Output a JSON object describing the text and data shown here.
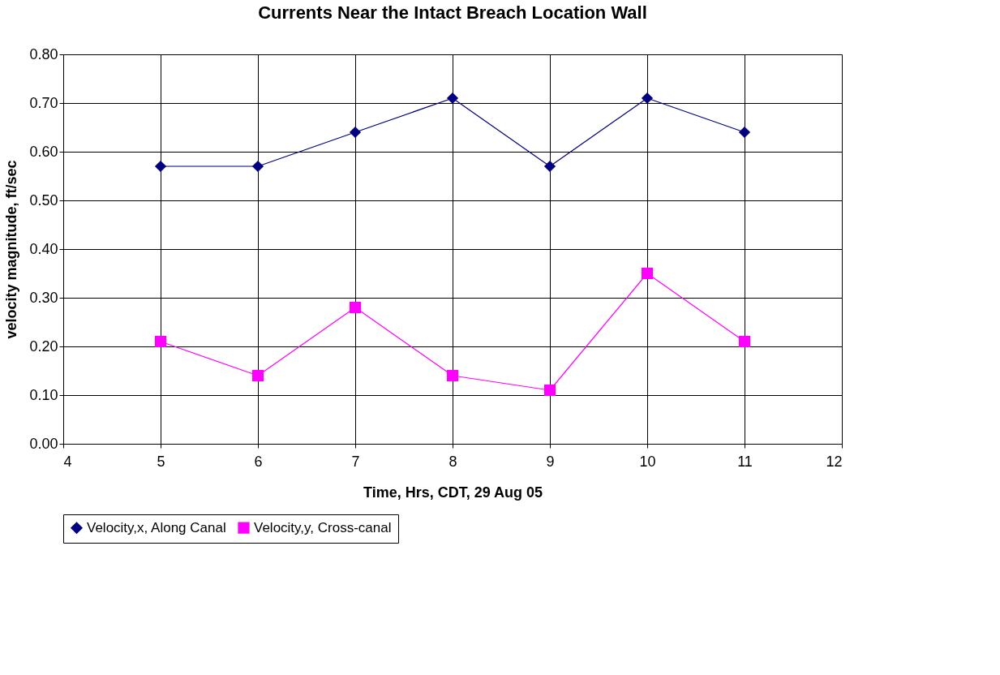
{
  "chart_data": {
    "type": "line",
    "title": "Currents Near the Intact Breach Location Wall",
    "xlabel": "Time, Hrs, CDT, 29 Aug 05",
    "ylabel": "velocity magnitude, ft/sec",
    "x": [
      5,
      6,
      7,
      8,
      9,
      10,
      11
    ],
    "series": [
      {
        "name": "Velocity,x, Along Canal",
        "color": "#000080",
        "marker": "diamond",
        "values": [
          0.57,
          0.57,
          0.64,
          0.71,
          0.57,
          0.71,
          0.64
        ]
      },
      {
        "name": "Velocity,y, Cross-canal",
        "color": "#ff00ff",
        "marker": "square",
        "values": [
          0.21,
          0.14,
          0.28,
          0.14,
          0.11,
          0.35,
          0.21
        ]
      }
    ],
    "xlim": [
      4,
      12
    ],
    "xticks": [
      4,
      5,
      6,
      7,
      8,
      9,
      10,
      11,
      12
    ],
    "ylim": [
      0,
      0.8
    ],
    "yticks": [
      {
        "value": 0,
        "label": "0.00"
      },
      {
        "value": 0.1,
        "label": "0.10"
      },
      {
        "value": 0.2,
        "label": "0.20"
      },
      {
        "value": 0.3,
        "label": "0.30"
      },
      {
        "value": 0.4,
        "label": "0.40"
      },
      {
        "value": 0.5,
        "label": "0.50"
      },
      {
        "value": 0.6,
        "label": "0.60"
      },
      {
        "value": 0.7,
        "label": "0.70"
      },
      {
        "value": 0.8,
        "label": "0.80"
      }
    ],
    "grid": true,
    "legend": "bottom",
    "line_style": "solid"
  }
}
